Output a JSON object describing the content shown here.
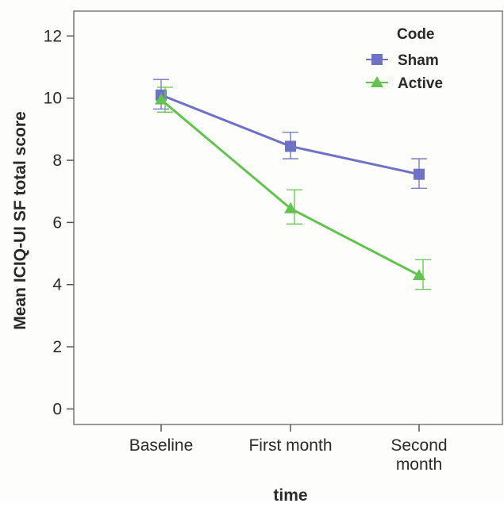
{
  "chart_data": {
    "type": "line",
    "title": "",
    "xlabel": "time",
    "ylabel": "Mean ICIQ-UI SF total score",
    "categories": [
      "Baseline",
      "First month",
      "Second month"
    ],
    "ylim": [
      -0.5,
      12.8
    ],
    "yticks": [
      0,
      2,
      4,
      6,
      8,
      10,
      12
    ],
    "grid": false,
    "legend": {
      "title": "Code",
      "placement": "top-right"
    },
    "series": [
      {
        "name": "Sham",
        "marker": "square",
        "color": "#6e72c4",
        "values": [
          10.1,
          8.45,
          7.55
        ],
        "error_low": [
          9.65,
          8.05,
          7.1
        ],
        "error_high": [
          10.6,
          8.9,
          8.05
        ]
      },
      {
        "name": "Active",
        "marker": "triangle",
        "color": "#62c44e",
        "values": [
          9.95,
          6.45,
          4.3
        ],
        "error_low": [
          9.55,
          5.95,
          3.85
        ],
        "error_high": [
          10.35,
          7.05,
          4.8
        ]
      }
    ]
  }
}
